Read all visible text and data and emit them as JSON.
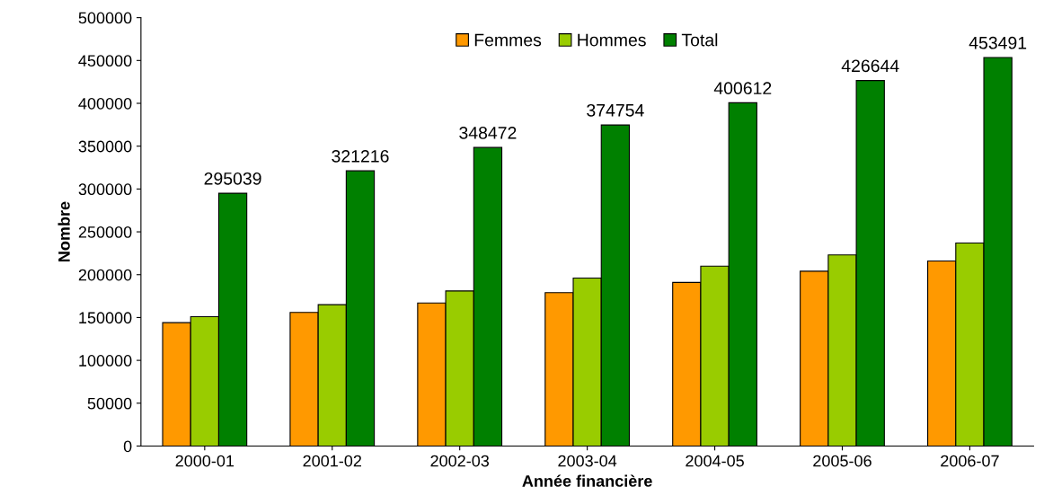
{
  "chart_data": {
    "type": "bar",
    "xlabel": "Année financière",
    "ylabel": "Nombre",
    "categories": [
      "2000-01",
      "2001-02",
      "2002-03",
      "2003-04",
      "2004-05",
      "2005-06",
      "2006-07"
    ],
    "series": [
      {
        "name": "Femmes",
        "color": "#ff9900",
        "values": [
          144000,
          156000,
          167000,
          179000,
          191000,
          204000,
          216000
        ]
      },
      {
        "name": "Hommes",
        "color": "#99cc00",
        "values": [
          151000,
          165000,
          181000,
          196000,
          210000,
          223000,
          237000
        ]
      },
      {
        "name": "Total",
        "color": "#008000",
        "values": [
          295039,
          321216,
          348472,
          374754,
          400612,
          426644,
          453491
        ],
        "value_labels": [
          "295039",
          "321216",
          "348472",
          "374754",
          "400612",
          "426644",
          "453491"
        ]
      }
    ],
    "ylim": [
      0,
      500000
    ],
    "yticks": [
      0,
      50000,
      100000,
      150000,
      200000,
      250000,
      300000,
      350000,
      400000,
      450000,
      500000
    ],
    "grid": false,
    "legend": "top"
  }
}
